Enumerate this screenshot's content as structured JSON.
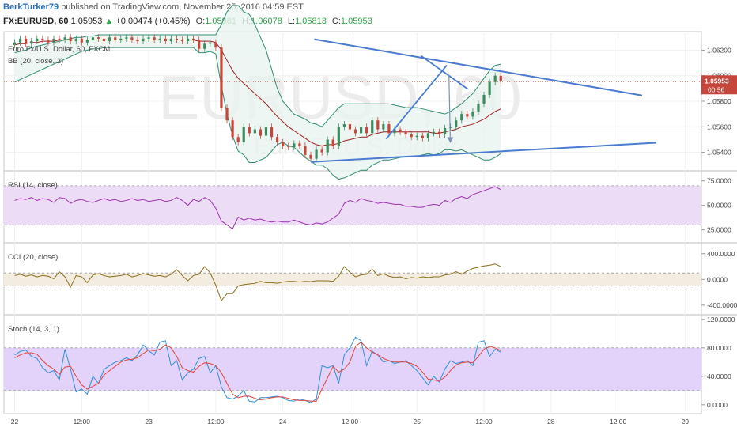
{
  "header": {
    "author": "BerkTurker79",
    "published_text": "published on TradingView.com, November 25, 2016 04:59 EST",
    "symbol": "FX:EURUSD, 60",
    "price": "1.05953",
    "change": "+0.00474 (+0.45%)",
    "o_label": "O:",
    "o_value": "1.05981",
    "h_label": "H:",
    "h_value": "1.06078",
    "l_label": "L:",
    "l_value": "1.05813",
    "c_label": "C:",
    "c_value": "1.05953"
  },
  "colors": {
    "up": "#3d8a5e",
    "down": "#c7463c",
    "bb": "#2e8c73",
    "bb_mid": "#9b1f20",
    "trendline": "#4a7bd0",
    "rsi": "#9c2fb0",
    "cci": "#8a6d1b",
    "stoch_k": "#2f8ed8",
    "stoch_d": "#e0443b",
    "band_fill_rsi": "#ecdcf5",
    "band_fill_cci": "#f3ece0",
    "band_fill_stoch": "#e3d3fa",
    "price_badge": "#c7463c"
  },
  "chart_data": [
    {
      "type": "line",
      "panel": "price",
      "watermark_symbol": "EURUSD, 60",
      "watermark_name": "Euro Fx/U.S. Dollar",
      "legend_title": "Euro Fx/U.S. Dollar, 60, FXCM",
      "indicator_label": "BB (20, close, 2)",
      "ylim": [
        1.0528,
        1.0632
      ],
      "y_ticks": [
        "1.06200",
        "1.06000",
        "1.05800",
        "1.05600",
        "1.05400"
      ],
      "y_tick_values": [
        1.062,
        1.06,
        1.058,
        1.056,
        1.054
      ],
      "current_price": "1.05953",
      "current_price_value": 1.05953,
      "countdown": "00:56",
      "x_ticks": [
        "22",
        "12:00",
        "23",
        "12:00",
        "24",
        "12:00",
        "25",
        "12:00",
        "28",
        "12:00",
        "29"
      ],
      "x_tick_index": [
        0,
        12,
        24,
        36,
        48,
        60,
        72,
        84,
        96,
        108,
        120
      ],
      "closes": [
        1.0626,
        1.0629,
        1.0625,
        1.0627,
        1.0629,
        1.0628,
        1.0626,
        1.0629,
        1.0628,
        1.063,
        1.0627,
        1.0629,
        1.0626,
        1.0628,
        1.063,
        1.0629,
        1.0627,
        1.063,
        1.0628,
        1.0629,
        1.063,
        1.0628,
        1.0627,
        1.0629,
        1.063,
        1.0628,
        1.0629,
        1.0627,
        1.0629,
        1.0628,
        1.0627,
        1.0629,
        1.0628,
        1.0621,
        1.0625,
        1.0626,
        1.0622,
        1.0575,
        1.0565,
        1.0552,
        1.0548,
        1.056,
        1.0555,
        1.0558,
        1.0553,
        1.056,
        1.0552,
        1.0548,
        1.0545,
        1.0544,
        1.0547,
        1.0545,
        1.0538,
        1.0535,
        1.0542,
        1.054,
        1.055,
        1.0545,
        1.056,
        1.0562,
        1.0558,
        1.0555,
        1.056,
        1.0555,
        1.0565,
        1.0558,
        1.0562,
        1.0555,
        1.0558,
        1.0556,
        1.0554,
        1.0552,
        1.0553,
        1.0551,
        1.0555,
        1.0556,
        1.0554,
        1.0559,
        1.056,
        1.0565,
        1.057,
        1.0568,
        1.0572,
        1.0578,
        1.0585,
        1.0595,
        1.06,
        1.0596
      ],
      "bb_upper": [
        1.0618,
        1.0619,
        1.062,
        1.0622,
        1.0623,
        1.0624,
        1.0625,
        1.0626,
        1.0627,
        1.0628,
        1.0629,
        1.063,
        1.063,
        1.0631,
        1.0631,
        1.0632,
        1.0632,
        1.0632,
        1.0632,
        1.0632,
        1.0632,
        1.0632,
        1.0632,
        1.0632,
        1.0632,
        1.0632,
        1.0632,
        1.0632,
        1.0632,
        1.0632,
        1.0632,
        1.0632,
        1.0632,
        1.0632,
        1.0632,
        1.0632,
        1.0632,
        1.064,
        1.065,
        1.0655,
        1.0655,
        1.065,
        1.0648,
        1.064,
        1.063,
        1.062,
        1.0605,
        1.059,
        1.058,
        1.0575,
        1.057,
        1.0568,
        1.0566,
        1.0563,
        1.0562,
        1.056,
        1.0565,
        1.057,
        1.0575,
        1.0578,
        1.0578,
        1.0578,
        1.0578,
        1.0578,
        1.0578,
        1.0578,
        1.0578,
        1.0578,
        1.0577,
        1.0576,
        1.0575,
        1.0575,
        1.0575,
        1.0574,
        1.0573,
        1.0572,
        1.0571,
        1.057,
        1.0572,
        1.0575,
        1.0578,
        1.0582,
        1.0586,
        1.0592,
        1.0598,
        1.0604,
        1.0608,
        1.0609
      ],
      "bb_mid": [
        1.0624,
        1.0625,
        1.0625,
        1.0626,
        1.0626,
        1.0627,
        1.0627,
        1.0627,
        1.0628,
        1.0628,
        1.0628,
        1.0628,
        1.0628,
        1.0628,
        1.0628,
        1.0628,
        1.0628,
        1.0628,
        1.0628,
        1.0628,
        1.0628,
        1.0628,
        1.0628,
        1.0628,
        1.0628,
        1.0628,
        1.0628,
        1.0628,
        1.0628,
        1.0628,
        1.0628,
        1.0628,
        1.0628,
        1.0627,
        1.0627,
        1.0627,
        1.0626,
        1.062,
        1.0612,
        1.0604,
        1.0598,
        1.0594,
        1.059,
        1.0586,
        1.0582,
        1.0578,
        1.0573,
        1.0568,
        1.0564,
        1.056,
        1.0557,
        1.0554,
        1.0551,
        1.0548,
        1.0546,
        1.0545,
        1.0546,
        1.0546,
        1.0547,
        1.0549,
        1.055,
        1.0551,
        1.0552,
        1.0552,
        1.0554,
        1.0555,
        1.0556,
        1.0556,
        1.0556,
        1.0556,
        1.0556,
        1.0556,
        1.0556,
        1.0556,
        1.0556,
        1.0555,
        1.0555,
        1.0556,
        1.0557,
        1.0558,
        1.056,
        1.0561,
        1.0562,
        1.0564,
        1.0566,
        1.0569,
        1.0572,
        1.0574
      ],
      "bb_lower": [
        1.0595,
        1.0597,
        1.0599,
        1.0601,
        1.0603,
        1.0605,
        1.0607,
        1.0609,
        1.0611,
        1.0613,
        1.0615,
        1.0617,
        1.0619,
        1.062,
        1.0621,
        1.0621,
        1.0622,
        1.0622,
        1.0622,
        1.0622,
        1.0622,
        1.0622,
        1.0622,
        1.0622,
        1.0622,
        1.0622,
        1.0622,
        1.0622,
        1.0622,
        1.0622,
        1.0622,
        1.0622,
        1.0622,
        1.0618,
        1.0618,
        1.0619,
        1.0617,
        1.0592,
        1.057,
        1.0553,
        1.0541,
        1.0538,
        1.0532,
        1.0532,
        1.0534,
        1.0536,
        1.0541,
        1.0546,
        1.0548,
        1.0545,
        1.0544,
        1.054,
        1.0536,
        1.0533,
        1.053,
        1.053,
        1.0527,
        1.0522,
        1.0519,
        1.052,
        1.0522,
        1.0524,
        1.0526,
        1.0526,
        1.053,
        1.0532,
        1.0534,
        1.0534,
        1.0535,
        1.0536,
        1.0537,
        1.0537,
        1.0537,
        1.0538,
        1.0539,
        1.0538,
        1.0539,
        1.0542,
        1.0542,
        1.0541,
        1.0542,
        1.054,
        1.0538,
        1.0536,
        1.0534,
        1.0534,
        1.0536,
        1.0539
      ]
    },
    {
      "type": "line",
      "panel": "rsi",
      "label": "RSI (14, close)",
      "ylim": [
        15,
        82
      ],
      "y_ticks": [
        "75.0000",
        "50.0000",
        "25.0000"
      ],
      "y_tick_values": [
        75,
        50,
        25
      ],
      "band": [
        30,
        70
      ],
      "values": [
        55,
        57,
        56,
        58,
        55,
        57,
        56,
        53,
        58,
        57,
        52,
        55,
        56,
        54,
        53,
        55,
        57,
        55,
        56,
        54,
        55,
        57,
        55,
        56,
        54,
        55,
        56,
        54,
        55,
        58,
        55,
        50,
        56,
        54,
        58,
        55,
        47,
        34,
        30,
        26,
        38,
        35,
        37,
        35,
        36,
        34,
        33,
        34,
        33,
        33,
        35,
        33,
        31,
        30,
        32,
        31,
        33,
        37,
        41,
        52,
        55,
        53,
        57,
        55,
        54,
        52,
        53,
        52,
        51,
        51,
        49,
        49,
        48,
        48,
        50,
        51,
        50,
        55,
        53,
        57,
        59,
        57,
        61,
        63,
        65,
        67,
        69,
        66
      ]
    },
    {
      "type": "line",
      "panel": "cci",
      "label": "CCI (20, close)",
      "ylim": [
        -500,
        520
      ],
      "y_ticks": [
        "400.0000",
        "0.0000",
        "-400.0000"
      ],
      "y_tick_values": [
        400,
        0,
        -400
      ],
      "band": [
        -100,
        100
      ],
      "values": [
        60,
        80,
        50,
        70,
        40,
        60,
        50,
        10,
        120,
        40,
        -120,
        60,
        40,
        -50,
        70,
        90,
        60,
        40,
        50,
        60,
        80,
        40,
        60,
        90,
        70,
        50,
        60,
        40,
        80,
        150,
        60,
        -20,
        60,
        80,
        200,
        100,
        -90,
        -330,
        -220,
        -220,
        -100,
        -80,
        -70,
        -60,
        -30,
        -50,
        -50,
        -60,
        -40,
        -30,
        -30,
        -40,
        -30,
        -35,
        -20,
        -20,
        -20,
        -30,
        50,
        200,
        110,
        40,
        70,
        80,
        160,
        60,
        90,
        50,
        30,
        40,
        10,
        30,
        20,
        40,
        30,
        40,
        40,
        70,
        80,
        120,
        80,
        130,
        170,
        190,
        210,
        220,
        240,
        200
      ]
    },
    {
      "type": "line",
      "panel": "stoch",
      "label": "Stoch (14, 3, 1)",
      "ylim": [
        -8,
        122
      ],
      "y_ticks": [
        "120.0000",
        "80.0000",
        "40.0000",
        "0.0000"
      ],
      "y_tick_values": [
        120,
        80,
        40,
        0
      ],
      "band": [
        20,
        80
      ],
      "k": [
        70,
        75,
        77,
        68,
        65,
        52,
        45,
        48,
        35,
        78,
        50,
        18,
        22,
        15,
        40,
        30,
        50,
        55,
        60,
        62,
        66,
        62,
        70,
        84,
        76,
        70,
        88,
        90,
        55,
        62,
        35,
        45,
        50,
        65,
        68,
        45,
        55,
        25,
        10,
        8,
        12,
        20,
        5,
        4,
        10,
        10,
        11,
        12,
        10,
        6,
        5,
        8,
        6,
        3,
        8,
        55,
        52,
        55,
        30,
        70,
        80,
        95,
        90,
        55,
        75,
        70,
        60,
        62,
        58,
        60,
        62,
        55,
        48,
        38,
        28,
        40,
        32,
        50,
        62,
        58,
        60,
        62,
        55,
        88,
        90,
        68,
        78,
        74
      ],
      "d": [
        66,
        70,
        73,
        73,
        71,
        62,
        55,
        50,
        43,
        53,
        54,
        40,
        28,
        22,
        26,
        30,
        42,
        48,
        54,
        60,
        63,
        64,
        66,
        72,
        77,
        76,
        78,
        84,
        80,
        68,
        52,
        48,
        46,
        54,
        59,
        58,
        55,
        45,
        30,
        15,
        10,
        12,
        12,
        9,
        7,
        8,
        10,
        11,
        11,
        9,
        7,
        6,
        6,
        5,
        5,
        22,
        38,
        54,
        46,
        50,
        60,
        82,
        88,
        80,
        74,
        70,
        65,
        62,
        60,
        60,
        60,
        58,
        54,
        46,
        36,
        35,
        33,
        39,
        48,
        56,
        59,
        60,
        59,
        68,
        78,
        82,
        80,
        76
      ]
    }
  ],
  "annotations": {
    "trendline_upper": [
      [
        0.445,
        1.06285
      ],
      [
        0.915,
        1.05845
      ]
    ],
    "trendline_lower": [
      [
        0.44,
        1.05325
      ],
      [
        0.935,
        1.05475
      ]
    ],
    "channel_up": [
      [
        0.548,
        1.05505
      ],
      [
        0.635,
        1.06082
      ]
    ],
    "channel_right": [
      [
        0.598,
        1.06155
      ],
      [
        0.665,
        1.05895
      ]
    ],
    "arrow_down": [
      [
        0.638,
        1.06005
      ],
      [
        0.64,
        1.05475
      ]
    ]
  }
}
